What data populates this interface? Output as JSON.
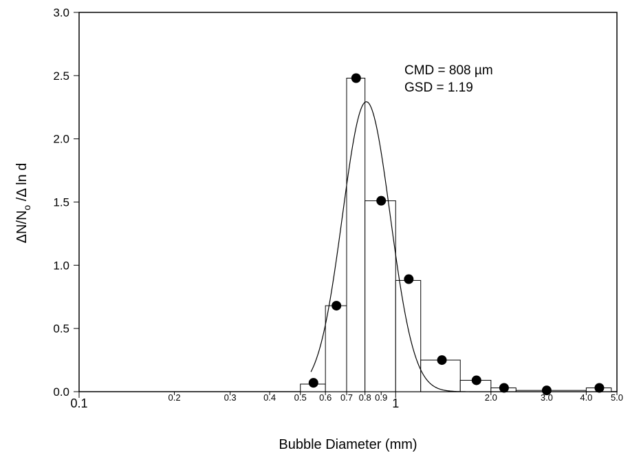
{
  "chart_data": {
    "type": "bar",
    "xscale": "log",
    "xlabel": "Bubble Diameter (mm)",
    "ylabel": "ΔN/Nₒ /Δ ln d",
    "ylabel_parts": {
      "pre": "ΔN/N",
      "sub": "o",
      "post": " /Δ ln d"
    },
    "xlim": [
      0.1,
      5.0
    ],
    "ylim": [
      0,
      3.0
    ],
    "x_ticks": [
      {
        "value": 0.1,
        "label": "0.1",
        "major": true
      },
      {
        "value": 0.2,
        "label": "0.2",
        "major": false
      },
      {
        "value": 0.3,
        "label": "0.3",
        "major": false
      },
      {
        "value": 0.4,
        "label": "0.4",
        "major": false
      },
      {
        "value": 0.5,
        "label": "0.5",
        "major": false
      },
      {
        "value": 0.6,
        "label": "0.6",
        "major": false
      },
      {
        "value": 0.7,
        "label": "0.7",
        "major": false
      },
      {
        "value": 0.8,
        "label": "0.8",
        "major": false
      },
      {
        "value": 0.9,
        "label": "0.9",
        "major": false
      },
      {
        "value": 1.0,
        "label": "1",
        "major": true
      },
      {
        "value": 2.0,
        "label": "2.0",
        "major": false
      },
      {
        "value": 3.0,
        "label": "3.0",
        "major": false
      },
      {
        "value": 4.0,
        "label": "4.0",
        "major": false
      },
      {
        "value": 5.0,
        "label": "5.0",
        "major": false
      }
    ],
    "y_ticks": [
      {
        "value": 0.0,
        "label": "0.0"
      },
      {
        "value": 0.5,
        "label": "0.5"
      },
      {
        "value": 1.0,
        "label": "1.0"
      },
      {
        "value": 1.5,
        "label": "1.5"
      },
      {
        "value": 2.0,
        "label": "2.0"
      },
      {
        "value": 2.5,
        "label": "2.5"
      },
      {
        "value": 3.0,
        "label": "3.0"
      }
    ],
    "bins": [
      {
        "lo": 0.5,
        "hi": 0.6,
        "value": 0.06
      },
      {
        "lo": 0.6,
        "hi": 0.7,
        "value": 0.68
      },
      {
        "lo": 0.7,
        "hi": 0.8,
        "value": 2.48
      },
      {
        "lo": 0.8,
        "hi": 1.0,
        "value": 1.51
      },
      {
        "lo": 1.0,
        "hi": 1.2,
        "value": 0.88
      },
      {
        "lo": 1.2,
        "hi": 1.6,
        "value": 0.25
      },
      {
        "lo": 1.6,
        "hi": 2.0,
        "value": 0.09
      },
      {
        "lo": 2.0,
        "hi": 2.4,
        "value": 0.03
      },
      {
        "lo": 2.4,
        "hi": 4.0,
        "value": 0.01
      },
      {
        "lo": 4.0,
        "hi": 4.8,
        "value": 0.03
      }
    ],
    "points": [
      {
        "x": 0.55,
        "y": 0.07
      },
      {
        "x": 0.65,
        "y": 0.68
      },
      {
        "x": 0.75,
        "y": 2.48
      },
      {
        "x": 0.9,
        "y": 1.51
      },
      {
        "x": 1.1,
        "y": 0.89
      },
      {
        "x": 1.4,
        "y": 0.25
      },
      {
        "x": 1.8,
        "y": 0.09
      },
      {
        "x": 2.2,
        "y": 0.03
      },
      {
        "x": 3.0,
        "y": 0.01
      },
      {
        "x": 4.4,
        "y": 0.03
      }
    ],
    "fit_curve": {
      "type": "lognormal",
      "cmd_mm": 0.808,
      "gsd": 1.19,
      "x_range": [
        0.54,
        5.0
      ]
    },
    "annotations": [
      "CMD = 808 µm",
      "GSD = 1.19"
    ]
  }
}
